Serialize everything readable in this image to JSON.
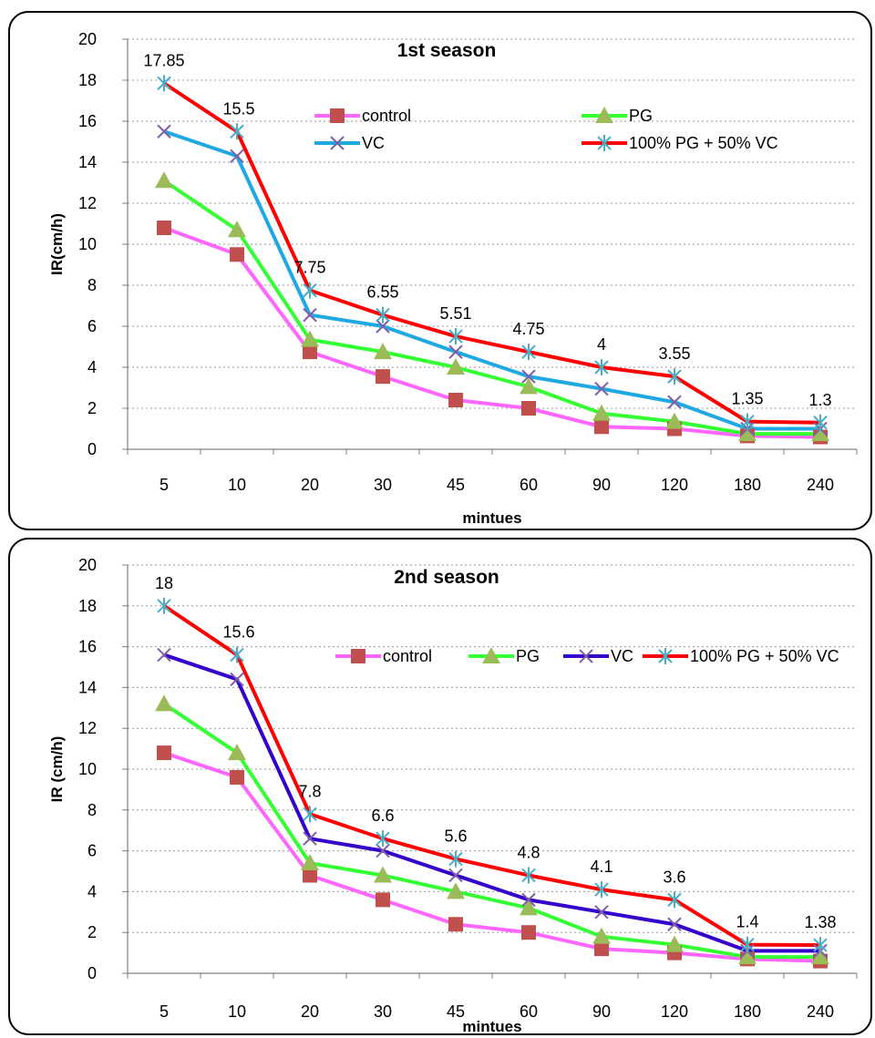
{
  "colors": {
    "control_line": "#ff66ff",
    "control_marker": "#c0504d",
    "pg_line": "#33ff33",
    "pg_marker": "#9bbb59",
    "vc_line_1": "#1fa9e0",
    "vc_line_2": "#3300cc",
    "vc_marker": "#7f5fa6",
    "mix_line": "#ff0000",
    "mix_marker": "#4bacc6"
  },
  "chart_data": [
    {
      "type": "line",
      "title": "1st season",
      "xlabel": "mintues",
      "ylabel": "IR(cm/h)",
      "ylim": [
        0,
        20
      ],
      "yticks": [
        "0",
        "2",
        "4",
        "6",
        "8",
        "10",
        "12",
        "14",
        "16",
        "18",
        "20"
      ],
      "categories": [
        "5",
        "10",
        "20",
        "30",
        "45",
        "60",
        "90",
        "120",
        "180",
        "240"
      ],
      "grid": "horizontal dotted",
      "legend": "top-right, two columns",
      "series": [
        {
          "name": "control",
          "values": [
            10.8,
            9.5,
            4.75,
            3.55,
            2.4,
            2.0,
            1.1,
            1.0,
            0.65,
            0.6
          ]
        },
        {
          "name": "PG",
          "values": [
            13.1,
            10.7,
            5.35,
            4.75,
            4.0,
            3.05,
            1.75,
            1.35,
            0.75,
            0.75
          ]
        },
        {
          "name": "VC",
          "values": [
            15.5,
            14.3,
            6.55,
            6.0,
            4.75,
            3.55,
            2.95,
            2.3,
            1.0,
            1.0
          ]
        },
        {
          "name": "100% PG + 50% VC",
          "values": [
            17.85,
            15.5,
            7.75,
            6.55,
            5.51,
            4.75,
            4.0,
            3.55,
            1.35,
            1.3
          ]
        }
      ],
      "data_labels": [
        "17.85",
        "15.5",
        "7.75",
        "6.55",
        "5.51",
        "4.75",
        "4",
        "3.55",
        "1.35",
        "1.3"
      ]
    },
    {
      "type": "line",
      "title": "2nd season",
      "xlabel": "mintues",
      "ylabel": "IR (cm/h)",
      "ylim": [
        0,
        20
      ],
      "yticks": [
        "0",
        "2",
        "4",
        "6",
        "8",
        "10",
        "12",
        "14",
        "16",
        "18",
        "20"
      ],
      "categories": [
        "5",
        "10",
        "20",
        "30",
        "45",
        "60",
        "90",
        "120",
        "180",
        "240"
      ],
      "grid": "horizontal dotted",
      "legend": "right, single row",
      "series": [
        {
          "name": "control",
          "values": [
            10.8,
            9.6,
            4.8,
            3.6,
            2.4,
            2.0,
            1.2,
            1.0,
            0.7,
            0.6
          ]
        },
        {
          "name": "PG",
          "values": [
            13.2,
            10.8,
            5.4,
            4.8,
            4.0,
            3.2,
            1.8,
            1.4,
            0.8,
            0.8
          ]
        },
        {
          "name": "VC",
          "values": [
            15.6,
            14.4,
            6.6,
            6.0,
            4.8,
            3.6,
            3.0,
            2.4,
            1.1,
            1.1
          ]
        },
        {
          "name": "100% PG + 50% VC",
          "values": [
            18,
            15.6,
            7.8,
            6.6,
            5.6,
            4.8,
            4.1,
            3.6,
            1.4,
            1.38
          ]
        }
      ],
      "data_labels": [
        "18",
        "15.6",
        "7.8",
        "6.6",
        "5.6",
        "4.8",
        "4.1",
        "3.6",
        "1.4",
        "1.38"
      ]
    }
  ]
}
